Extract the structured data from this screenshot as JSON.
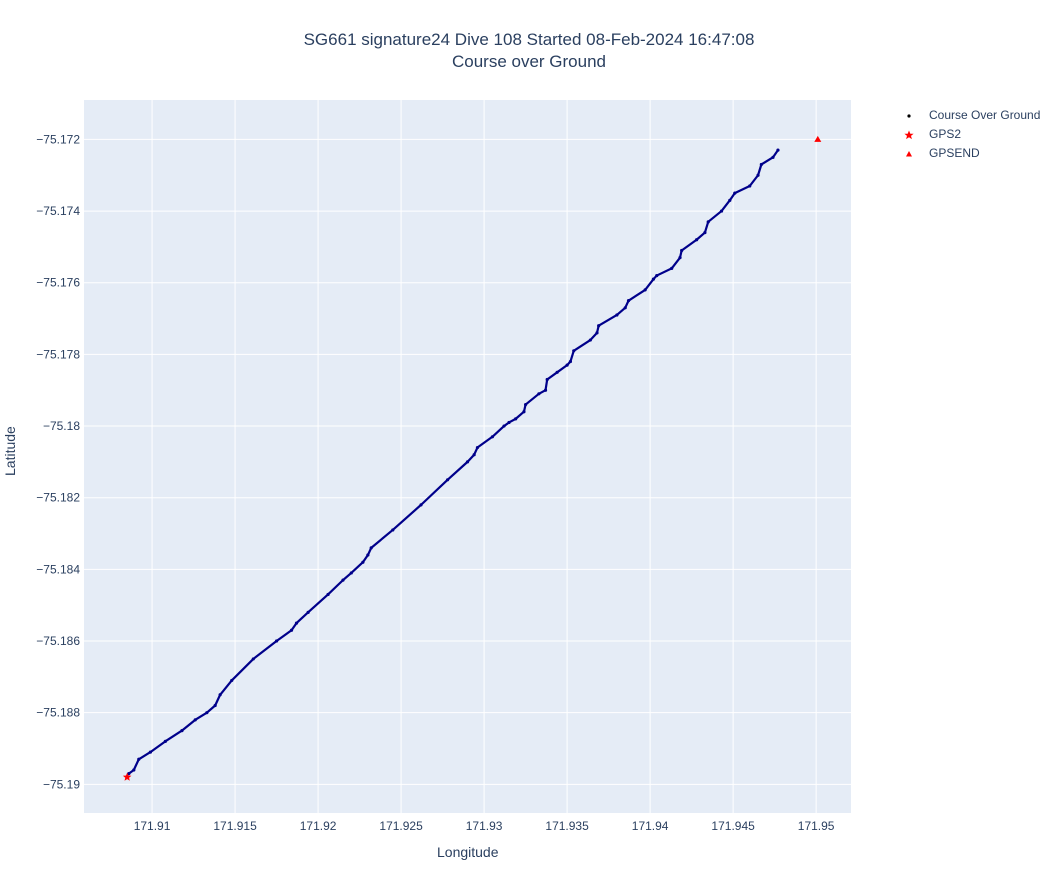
{
  "chart_data": {
    "type": "scatter",
    "title_line1": "SG661 signature24 Dive 108 Started 08-Feb-2024 16:47:08",
    "title_line2": "Course over Ground",
    "xlabel": "Longitude",
    "ylabel": "Latitude",
    "xlim": [
      171.9059,
      171.9521
    ],
    "ylim": [
      -75.1908,
      -75.1709
    ],
    "xticks": [
      171.91,
      171.915,
      171.92,
      171.925,
      171.93,
      171.935,
      171.94,
      171.945,
      171.95
    ],
    "xtick_labels": [
      "171.91",
      "171.915",
      "171.92",
      "171.925",
      "171.93",
      "171.935",
      "171.94",
      "171.945",
      "171.95"
    ],
    "yticks": [
      -75.19,
      -75.188,
      -75.186,
      -75.184,
      -75.182,
      -75.18,
      -75.178,
      -75.176,
      -75.174,
      -75.172
    ],
    "ytick_labels": [
      "−75.19",
      "−75.188",
      "−75.186",
      "−75.184",
      "−75.182",
      "−75.18",
      "−75.178",
      "−75.176",
      "−75.174",
      "−75.172"
    ],
    "grid": true,
    "legend_position": "top-right, outside plot",
    "colors": {
      "plot_bg": "#e5ecf6",
      "grid": "#ffffff",
      "track": "#00008b",
      "markers": "#ff0000",
      "text": "#2a3f5f"
    },
    "series": [
      {
        "name": "Course Over Ground",
        "marker": "dot",
        "color": "#00008b",
        "points": [
          [
            171.9086,
            -75.1897
          ],
          [
            171.9089,
            -75.1896
          ],
          [
            171.9092,
            -75.1893
          ],
          [
            171.9099,
            -75.1891
          ],
          [
            171.9108,
            -75.1888
          ],
          [
            171.9118,
            -75.1885
          ],
          [
            171.9126,
            -75.1882
          ],
          [
            171.9133,
            -75.188
          ],
          [
            171.9138,
            -75.1878
          ],
          [
            171.9141,
            -75.1875
          ],
          [
            171.9148,
            -75.1871
          ],
          [
            171.9161,
            -75.1865
          ],
          [
            171.9175,
            -75.186
          ],
          [
            171.9184,
            -75.1857
          ],
          [
            171.9187,
            -75.1855
          ],
          [
            171.9194,
            -75.1852
          ],
          [
            171.9206,
            -75.1847
          ],
          [
            171.9215,
            -75.1843
          ],
          [
            171.922,
            -75.1841
          ],
          [
            171.9227,
            -75.1838
          ],
          [
            171.923,
            -75.1836
          ],
          [
            171.9232,
            -75.1834
          ],
          [
            171.9245,
            -75.1829
          ],
          [
            171.9262,
            -75.1822
          ],
          [
            171.9278,
            -75.1815
          ],
          [
            171.929,
            -75.181
          ],
          [
            171.9294,
            -75.1808
          ],
          [
            171.9296,
            -75.1806
          ],
          [
            171.9305,
            -75.1803
          ],
          [
            171.9312,
            -75.18
          ],
          [
            171.9315,
            -75.1799
          ],
          [
            171.9319,
            -75.1798
          ],
          [
            171.9324,
            -75.1796
          ],
          [
            171.9325,
            -75.1794
          ],
          [
            171.9333,
            -75.1791
          ],
          [
            171.9337,
            -75.179
          ],
          [
            171.9338,
            -75.1787
          ],
          [
            171.9344,
            -75.1785
          ],
          [
            171.935,
            -75.1783
          ],
          [
            171.9352,
            -75.1782
          ],
          [
            171.9354,
            -75.1779
          ],
          [
            171.9364,
            -75.1776
          ],
          [
            171.9368,
            -75.1774
          ],
          [
            171.9369,
            -75.1772
          ],
          [
            171.938,
            -75.1769
          ],
          [
            171.9385,
            -75.1767
          ],
          [
            171.9387,
            -75.1765
          ],
          [
            171.9397,
            -75.1762
          ],
          [
            171.9402,
            -75.1759
          ],
          [
            171.9404,
            -75.1758
          ],
          [
            171.9413,
            -75.1756
          ],
          [
            171.9418,
            -75.1753
          ],
          [
            171.9419,
            -75.1751
          ],
          [
            171.9428,
            -75.1748
          ],
          [
            171.9433,
            -75.1746
          ],
          [
            171.9435,
            -75.1743
          ],
          [
            171.9443,
            -75.174
          ],
          [
            171.9448,
            -75.1737
          ],
          [
            171.9451,
            -75.1735
          ],
          [
            171.946,
            -75.1733
          ],
          [
            171.9465,
            -75.173
          ],
          [
            171.9467,
            -75.1727
          ],
          [
            171.9474,
            -75.1725
          ],
          [
            171.9477,
            -75.1723
          ]
        ]
      },
      {
        "name": "GPS2",
        "marker": "star",
        "color": "#ff0000",
        "points": [
          [
            171.9085,
            -75.1898
          ]
        ]
      },
      {
        "name": "GPSEND",
        "marker": "triangle-up",
        "color": "#ff0000",
        "points": [
          [
            171.9501,
            -75.172
          ]
        ]
      }
    ]
  }
}
